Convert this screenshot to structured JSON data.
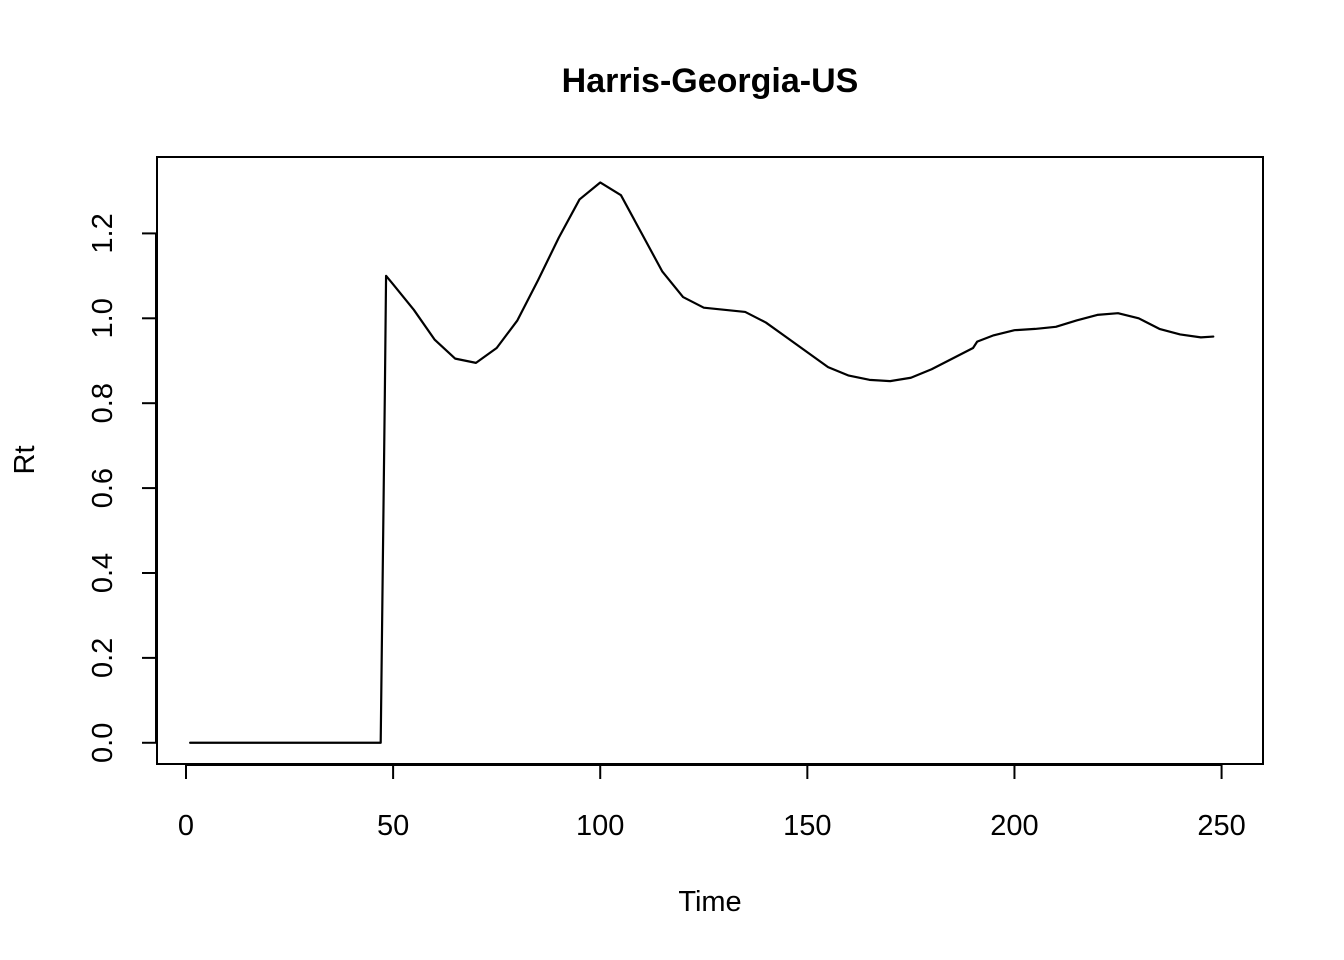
{
  "chart_data": {
    "type": "line",
    "title": "Harris-Georgia-US",
    "xlabel": "Time",
    "ylabel": "Rt",
    "xlim": [
      -7,
      260
    ],
    "ylim": [
      -0.05,
      1.38
    ],
    "x_ticks": [
      0,
      50,
      100,
      150,
      200,
      250
    ],
    "y_ticks": [
      0.0,
      0.2,
      0.4,
      0.6,
      0.8,
      1.0,
      1.2
    ],
    "x_tick_labels": [
      "0",
      "50",
      "100",
      "150",
      "200",
      "250"
    ],
    "y_tick_labels": [
      "0.0",
      "0.2",
      "0.4",
      "0.6",
      "0.8",
      "1.0",
      "1.2"
    ],
    "grid": false,
    "legend": "none",
    "color": "#000000",
    "series": [
      {
        "points": [
          [
            1,
            0.0
          ],
          [
            10,
            0.0
          ],
          [
            20,
            0.0
          ],
          [
            30,
            0.0
          ],
          [
            40,
            0.0
          ],
          [
            47,
            0.0
          ],
          [
            48,
            0.82
          ],
          [
            48.3,
            1.1
          ],
          [
            50,
            1.08
          ],
          [
            55,
            1.02
          ],
          [
            60,
            0.95
          ],
          [
            65,
            0.905
          ],
          [
            70,
            0.895
          ],
          [
            75,
            0.93
          ],
          [
            80,
            0.995
          ],
          [
            85,
            1.09
          ],
          [
            90,
            1.19
          ],
          [
            95,
            1.28
          ],
          [
            100,
            1.32
          ],
          [
            105,
            1.29
          ],
          [
            110,
            1.2
          ],
          [
            115,
            1.11
          ],
          [
            120,
            1.05
          ],
          [
            125,
            1.025
          ],
          [
            130,
            1.02
          ],
          [
            135,
            1.015
          ],
          [
            140,
            0.99
          ],
          [
            145,
            0.955
          ],
          [
            150,
            0.92
          ],
          [
            155,
            0.885
          ],
          [
            160,
            0.865
          ],
          [
            165,
            0.855
          ],
          [
            170,
            0.852
          ],
          [
            175,
            0.86
          ],
          [
            180,
            0.88
          ],
          [
            185,
            0.905
          ],
          [
            190,
            0.93
          ],
          [
            191,
            0.945
          ],
          [
            195,
            0.96
          ],
          [
            200,
            0.972
          ],
          [
            205,
            0.975
          ],
          [
            210,
            0.98
          ],
          [
            215,
            0.995
          ],
          [
            220,
            1.008
          ],
          [
            225,
            1.012
          ],
          [
            230,
            1.0
          ],
          [
            235,
            0.975
          ],
          [
            240,
            0.962
          ],
          [
            245,
            0.955
          ],
          [
            248,
            0.957
          ]
        ]
      }
    ]
  }
}
